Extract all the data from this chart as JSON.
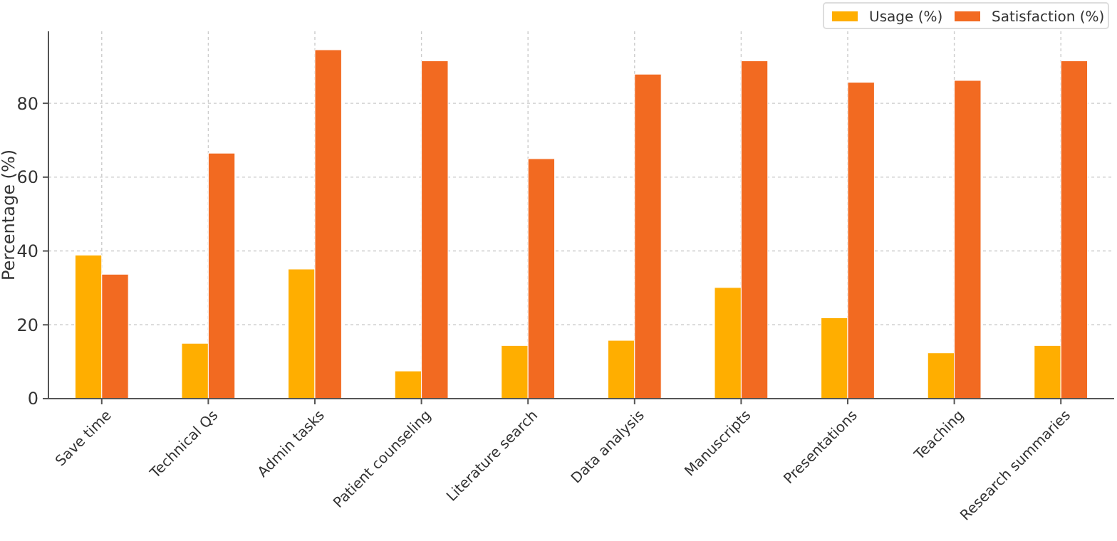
{
  "chart_data": {
    "type": "bar",
    "ylabel": "Percentage (%)",
    "categories": [
      "Save time",
      "Technical Qs",
      "Admin tasks",
      "Patient counseling",
      "Literature search",
      "Data analysis",
      "Manuscripts",
      "Presentations",
      "Teaching",
      "Research summaries"
    ],
    "series": [
      {
        "name": "Usage (%)",
        "color": "#ffae00",
        "values": [
          38.9,
          15.0,
          35.1,
          7.5,
          14.4,
          15.8,
          30.1,
          21.9,
          12.4,
          14.4
        ]
      },
      {
        "name": "Satisfaction (%)",
        "color": "#f26a21",
        "values": [
          33.7,
          66.5,
          94.5,
          91.5,
          65.0,
          87.9,
          91.5,
          85.7,
          86.2,
          91.5
        ]
      }
    ],
    "ylim": [
      0,
      99.5
    ],
    "yticks": [
      0,
      20,
      40,
      60,
      80
    ],
    "grid": true,
    "legend": "top right"
  }
}
